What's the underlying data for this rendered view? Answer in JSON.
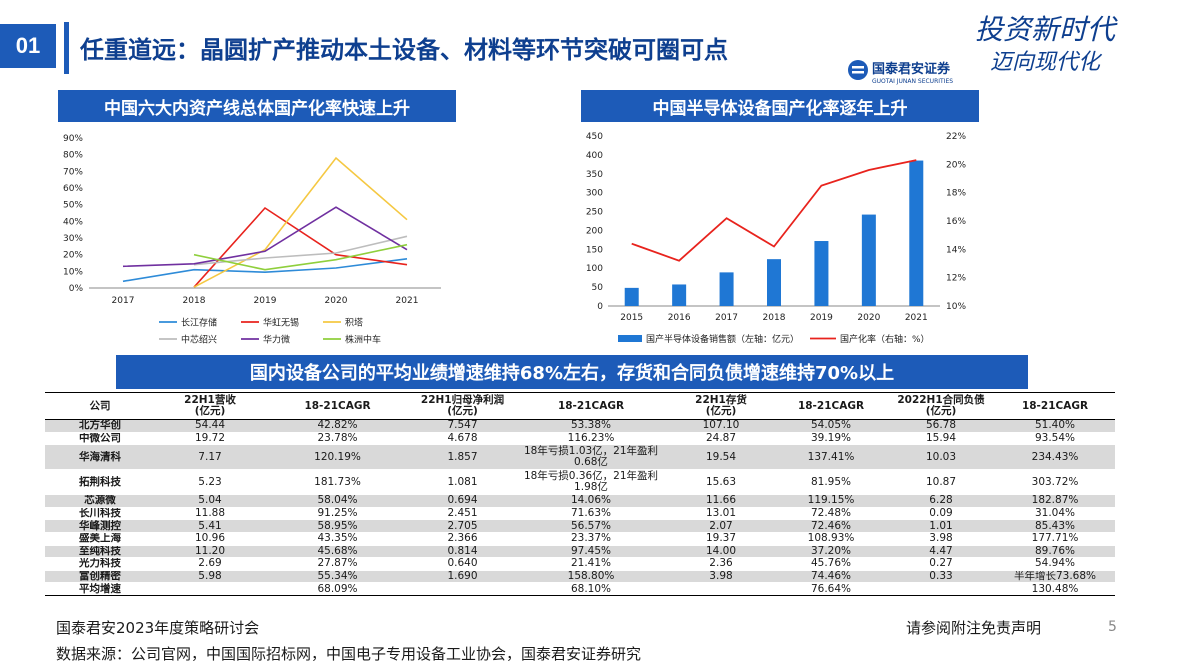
{
  "header": {
    "num": "01",
    "title": "任重道远：晶圆扩产推动本土设备、材料等环节突破可圈可点",
    "logo_text": "国泰君安证券",
    "logo_sub": "GUOTAI JUNAN SECURITIES",
    "slogan_line1": "投资新时代",
    "slogan_line2": "迈向现代化"
  },
  "colors": {
    "brand": "#1d5bb8",
    "title": "#0e3f8f",
    "row_shade": "#d9d9d9"
  },
  "chart_data": [
    {
      "type": "line",
      "title": "中国六大内资产线总体国产化率快速上升",
      "x": [
        "2017",
        "2018",
        "2019",
        "2020",
        "2021"
      ],
      "y_ticks": [
        "0%",
        "10%",
        "20%",
        "30%",
        "40%",
        "50%",
        "60%",
        "70%",
        "80%",
        "90%"
      ],
      "ylim": [
        0,
        90
      ],
      "legend_position": "bottom",
      "series": [
        {
          "name": "长江存储",
          "color": "#2e8bd8",
          "values": [
            4,
            11,
            9.5,
            12,
            17.5
          ]
        },
        {
          "name": "华虹无锡",
          "color": "#e8231d",
          "values": [
            null,
            0.5,
            48,
            20,
            14
          ]
        },
        {
          "name": "积塔",
          "color": "#f5c842",
          "values": [
            null,
            0.5,
            23,
            78,
            41
          ]
        },
        {
          "name": "中芯绍兴",
          "color": "#bdbdbd",
          "values": [
            null,
            14,
            18,
            21,
            31
          ]
        },
        {
          "name": "华力微",
          "color": "#7030a0",
          "values": [
            13,
            14.5,
            22,
            48.5,
            23
          ]
        },
        {
          "name": "株洲中车",
          "color": "#8fcf3c",
          "values": [
            null,
            20,
            11,
            17,
            26
          ]
        }
      ]
    },
    {
      "type": "bar",
      "title": "中国半导体设备国产化率逐年上升",
      "categories": [
        "2015",
        "2016",
        "2017",
        "2018",
        "2019",
        "2020",
        "2021"
      ],
      "y_ticks": [
        "0",
        "50",
        "100",
        "150",
        "200",
        "250",
        "300",
        "350",
        "400",
        "450"
      ],
      "y2_ticks": [
        "10%",
        "12%",
        "14%",
        "16%",
        "18%",
        "20%",
        "22%"
      ],
      "ylim": [
        0,
        450
      ],
      "y2lim": [
        10,
        22
      ],
      "legend_position": "bottom",
      "series": [
        {
          "name": "国产半导体设备销售额（左轴：亿元）",
          "kind": "bar",
          "color": "#1f77d4",
          "values": [
            48,
            57,
            89,
            124,
            172,
            242,
            385
          ]
        },
        {
          "name": "国产化率（右轴：%）",
          "kind": "line",
          "axis": "right",
          "color": "#e8231d",
          "values": [
            14.4,
            13.2,
            16.2,
            14.2,
            18.5,
            19.6,
            20.3
          ]
        }
      ]
    }
  ],
  "table": {
    "banner": "国内设备公司的平均业绩增速维持68%左右，存货和合同负债增速维持70%以上",
    "headers": [
      "公司",
      "22H1营收\n(亿元)",
      "18-21CAGR",
      "22H1归母净利润\n(亿元)",
      "18-21CAGR",
      "22H1存货\n(亿元)",
      "18-21CAGR",
      "2022H1合同负债\n(亿元)",
      "18-21CAGR"
    ],
    "rows": [
      [
        "北方华创",
        "54.44",
        "42.82%",
        "7.547",
        "53.38%",
        "107.10",
        "54.05%",
        "56.78",
        "51.40%"
      ],
      [
        "中微公司",
        "19.72",
        "23.78%",
        "4.678",
        "116.23%",
        "24.87",
        "39.19%",
        "15.94",
        "93.54%"
      ],
      [
        "华海清科",
        "7.17",
        "120.19%",
        "1.857",
        "18年亏损1.03亿，21年盈利\n0.68亿",
        "19.54",
        "137.41%",
        "10.03",
        "234.43%"
      ],
      [
        "拓荆科技",
        "5.23",
        "181.73%",
        "1.081",
        "18年亏损0.36亿，21年盈利\n1.98亿",
        "15.63",
        "81.95%",
        "10.87",
        "303.72%"
      ],
      [
        "芯源微",
        "5.04",
        "58.04%",
        "0.694",
        "14.06%",
        "11.66",
        "119.15%",
        "6.28",
        "182.87%"
      ],
      [
        "长川科技",
        "11.88",
        "91.25%",
        "2.451",
        "71.63%",
        "13.01",
        "72.48%",
        "0.09",
        "31.04%"
      ],
      [
        "华峰测控",
        "5.41",
        "58.95%",
        "2.705",
        "56.57%",
        "2.07",
        "72.46%",
        "1.01",
        "85.43%"
      ],
      [
        "盛美上海",
        "10.96",
        "43.35%",
        "2.366",
        "23.37%",
        "19.37",
        "108.93%",
        "3.98",
        "177.71%"
      ],
      [
        "至纯科技",
        "11.20",
        "45.68%",
        "0.814",
        "97.45%",
        "14.00",
        "37.20%",
        "4.47",
        "89.76%"
      ],
      [
        "光力科技",
        "2.69",
        "27.87%",
        "0.640",
        "21.41%",
        "2.36",
        "45.76%",
        "0.27",
        "54.94%"
      ],
      [
        "富创精密",
        "5.98",
        "55.34%",
        "1.690",
        "158.80%",
        "3.98",
        "74.46%",
        "0.33",
        "半年增长73.68%"
      ],
      [
        "平均增速",
        "",
        "68.09%",
        "",
        "68.10%",
        "",
        "76.64%",
        "",
        "130.48%"
      ]
    ]
  },
  "footer": {
    "left": "国泰君安2023年度策略研讨会",
    "right": "请参阅附注免责声明",
    "page": "5",
    "source": "数据来源：公司官网，中国国际招标网，中国电子专用设备工业协会，国泰君安证券研究"
  }
}
